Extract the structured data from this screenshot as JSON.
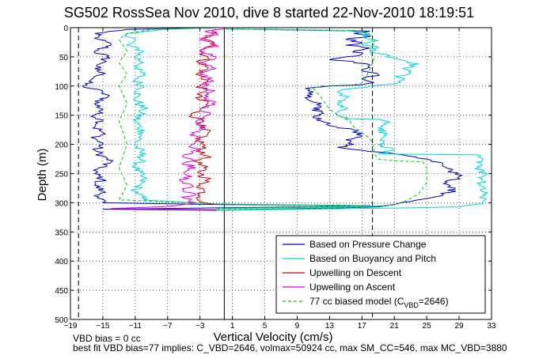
{
  "chart_data": {
    "type": "line",
    "title": "SG502 RossSea Nov 2010, dive 8 started 22-Nov-2010 18:19:51",
    "xlabel": "Vertical Velocity (cm/s)",
    "ylabel": "Depth (m)",
    "xlim": [
      -19,
      33
    ],
    "ylim": [
      0,
      500
    ],
    "y_reversed": true,
    "grid": true,
    "legend_position": "bottom-right",
    "xticks": [
      -19,
      -15,
      -11,
      -7,
      -3,
      1,
      5,
      9,
      13,
      17,
      21,
      25,
      29,
      33
    ],
    "yticks": [
      0,
      50,
      100,
      150,
      200,
      250,
      300,
      350,
      400,
      450,
      500
    ],
    "vertical_lines": [
      {
        "x": -18.0,
        "style": "dashed",
        "color": "#000000"
      },
      {
        "x": 18.3,
        "style": "dashed",
        "color": "#000000"
      },
      {
        "x": 0.0,
        "style": "solid",
        "color": "#000000"
      }
    ],
    "series": [
      {
        "name": "Based on Pressure Change",
        "color": "#0000cc",
        "style": "solid",
        "points": [
          [
            -1,
            0
          ],
          [
            -12,
            3
          ],
          [
            -16,
            10
          ],
          [
            -15.5,
            20
          ],
          [
            -14,
            30
          ],
          [
            -16,
            40
          ],
          [
            -14.5,
            50
          ],
          [
            -15,
            60
          ],
          [
            -16,
            70
          ],
          [
            -15,
            80
          ],
          [
            -16.5,
            90
          ],
          [
            -17.5,
            100
          ],
          [
            -15,
            110
          ],
          [
            -14.5,
            120
          ],
          [
            -16,
            130
          ],
          [
            -15,
            140
          ],
          [
            -16,
            150
          ],
          [
            -15,
            160
          ],
          [
            -16,
            170
          ],
          [
            -15,
            180
          ],
          [
            -16,
            190
          ],
          [
            -15,
            200
          ],
          [
            -16,
            210
          ],
          [
            -15,
            220
          ],
          [
            -14,
            230
          ],
          [
            -15.5,
            240
          ],
          [
            -16,
            250
          ],
          [
            -15,
            260
          ],
          [
            -16,
            270
          ],
          [
            -15,
            280
          ],
          [
            -15.5,
            290
          ],
          [
            -15,
            300
          ],
          [
            -1,
            303
          ],
          [
            18,
            305
          ],
          [
            5,
            308
          ],
          [
            -15,
            311
          ],
          [
            -1,
            313
          ]
        ]
      },
      {
        "name": "Based on Buoyancy and Pitch",
        "color": "#00d8d8",
        "style": "solid",
        "points": [
          [
            -1,
            0
          ],
          [
            -8,
            3
          ],
          [
            -12,
            10
          ],
          [
            -11,
            20
          ],
          [
            -12,
            30
          ],
          [
            -10,
            40
          ],
          [
            -11,
            50
          ],
          [
            -10,
            60
          ],
          [
            -11,
            70
          ],
          [
            -10,
            80
          ],
          [
            -11,
            90
          ],
          [
            -10,
            100
          ],
          [
            -11,
            120
          ],
          [
            -10,
            140
          ],
          [
            -11,
            160
          ],
          [
            -10,
            180
          ],
          [
            -11,
            200
          ],
          [
            -10,
            220
          ],
          [
            -11,
            240
          ],
          [
            -10,
            260
          ],
          [
            -11,
            280
          ],
          [
            -10,
            295
          ],
          [
            -1,
            302
          ],
          [
            20,
            306
          ],
          [
            -1,
            310
          ]
        ]
      },
      {
        "name": "Upwelling on Descent",
        "color": "#cc0000",
        "style": "solid",
        "points": [
          [
            -1,
            3
          ],
          [
            -1.5,
            10
          ],
          [
            -2.5,
            20
          ],
          [
            -1,
            30
          ],
          [
            -3,
            40
          ],
          [
            -2,
            50
          ],
          [
            -3,
            60
          ],
          [
            -2,
            70
          ],
          [
            -3.5,
            80
          ],
          [
            -2,
            90
          ],
          [
            -3,
            100
          ],
          [
            -2.5,
            110
          ],
          [
            -3.5,
            120
          ],
          [
            -2,
            130
          ],
          [
            -3,
            140
          ],
          [
            -4,
            150
          ],
          [
            -2.5,
            160
          ],
          [
            -3,
            170
          ],
          [
            -2,
            180
          ],
          [
            -3.5,
            190
          ],
          [
            -2.5,
            200
          ],
          [
            -3,
            210
          ],
          [
            -2,
            220
          ],
          [
            -3.5,
            230
          ],
          [
            -2.5,
            240
          ],
          [
            -3,
            250
          ],
          [
            -2,
            260
          ],
          [
            -3,
            270
          ],
          [
            -2.5,
            280
          ],
          [
            -3,
            290
          ],
          [
            -2.5,
            300
          ],
          [
            -1,
            303
          ]
        ]
      },
      {
        "name": "Upwelling on Ascent",
        "color": "#e000e0",
        "style": "solid",
        "points": [
          [
            -1,
            312
          ],
          [
            -14,
            310
          ],
          [
            -8,
            307
          ],
          [
            -5,
            303
          ],
          [
            -3.5,
            300
          ],
          [
            -5,
            292
          ],
          [
            -3.5,
            285
          ],
          [
            -5,
            278
          ],
          [
            -4,
            270
          ],
          [
            -5.5,
            262
          ],
          [
            -4,
            255
          ],
          [
            -5,
            248
          ],
          [
            -3.5,
            240
          ],
          [
            -5,
            232
          ],
          [
            -4,
            225
          ],
          [
            -5,
            218
          ],
          [
            -3.5,
            210
          ],
          [
            -4,
            200
          ],
          [
            -3,
            190
          ],
          [
            -4,
            180
          ],
          [
            -2.5,
            170
          ],
          [
            -3.5,
            160
          ],
          [
            -2,
            150
          ],
          [
            -3,
            140
          ],
          [
            -1.5,
            130
          ],
          [
            -2.5,
            120
          ],
          [
            -1.5,
            110
          ],
          [
            -2.5,
            100
          ],
          [
            -1.5,
            90
          ],
          [
            -3,
            80
          ],
          [
            -1,
            70
          ],
          [
            -3,
            60
          ],
          [
            -1,
            50
          ],
          [
            -3,
            40
          ],
          [
            -1,
            30
          ],
          [
            -3,
            20
          ],
          [
            -1,
            10
          ],
          [
            -2,
            5
          ],
          [
            0,
            2
          ]
        ]
      },
      {
        "name": "77 cc biased model (C_VBD=2646)",
        "color": "#00cc00",
        "style": "dashed",
        "points": [
          [
            -1,
            0
          ],
          [
            -9,
            3
          ],
          [
            -12,
            10
          ],
          [
            -13,
            20
          ],
          [
            -12,
            40
          ],
          [
            -13,
            60
          ],
          [
            -12,
            80
          ],
          [
            -13,
            100
          ],
          [
            -12,
            130
          ],
          [
            -13,
            160
          ],
          [
            -12,
            200
          ],
          [
            -13,
            240
          ],
          [
            -12,
            270
          ],
          [
            -13,
            295
          ],
          [
            -1,
            302
          ],
          [
            17,
            305
          ],
          [
            -1,
            310
          ]
        ]
      },
      {
        "name": "Based on Pressure Change (ascent)",
        "color": "#0000cc",
        "style": "solid",
        "legend": false,
        "points": [
          [
            -1,
            313
          ],
          [
            6,
            311
          ],
          [
            14,
            309
          ],
          [
            19,
            307
          ],
          [
            21,
            303
          ],
          [
            23,
            298
          ],
          [
            26,
            290
          ],
          [
            28,
            282
          ],
          [
            28.5,
            275
          ],
          [
            27.5,
            265
          ],
          [
            29,
            255
          ],
          [
            28,
            245
          ],
          [
            27,
            235
          ],
          [
            25,
            225
          ],
          [
            22,
            218
          ],
          [
            20,
            214
          ],
          [
            17,
            210
          ],
          [
            14,
            205
          ],
          [
            16,
            200
          ],
          [
            15,
            192
          ],
          [
            17,
            185
          ],
          [
            16,
            175
          ],
          [
            13,
            168
          ],
          [
            12,
            160
          ],
          [
            11,
            152
          ],
          [
            12,
            145
          ],
          [
            11,
            138
          ],
          [
            12,
            130
          ],
          [
            10,
            120
          ],
          [
            11,
            110
          ],
          [
            10,
            104
          ],
          [
            13,
            100
          ],
          [
            17,
            98
          ],
          [
            18.5,
            94
          ],
          [
            17,
            88
          ],
          [
            19,
            80
          ],
          [
            17,
            72
          ],
          [
            18,
            64
          ],
          [
            16,
            58
          ],
          [
            13,
            55
          ],
          [
            15,
            50
          ],
          [
            17,
            45
          ],
          [
            16,
            40
          ],
          [
            18,
            35
          ],
          [
            15,
            30
          ],
          [
            17,
            25
          ],
          [
            15,
            20
          ],
          [
            18,
            15
          ],
          [
            16,
            10
          ],
          [
            18,
            6
          ],
          [
            0,
            2
          ]
        ]
      },
      {
        "name": "Based on Buoyancy and Pitch (ascent)",
        "color": "#00d8d8",
        "style": "solid",
        "legend": false,
        "points": [
          [
            -1,
            313
          ],
          [
            10,
            311
          ],
          [
            22,
            309
          ],
          [
            29,
            307
          ],
          [
            31,
            303
          ],
          [
            32,
            297
          ],
          [
            32,
            285
          ],
          [
            31.5,
            270
          ],
          [
            32,
            255
          ],
          [
            31.5,
            240
          ],
          [
            32,
            225
          ],
          [
            31.5,
            218
          ],
          [
            24,
            217
          ],
          [
            19,
            216
          ],
          [
            21,
            210
          ],
          [
            19,
            200
          ],
          [
            20,
            185
          ],
          [
            19,
            172
          ],
          [
            20,
            160
          ],
          [
            19,
            157
          ],
          [
            15,
            156
          ],
          [
            14,
            150
          ],
          [
            15,
            140
          ],
          [
            14,
            130
          ],
          [
            15,
            120
          ],
          [
            14,
            110
          ],
          [
            16,
            104
          ],
          [
            18,
            100
          ],
          [
            21,
            96
          ],
          [
            22,
            90
          ],
          [
            21,
            84
          ],
          [
            23,
            78
          ],
          [
            22,
            70
          ],
          [
            24,
            62
          ],
          [
            22,
            56
          ],
          [
            21,
            52
          ],
          [
            20,
            46
          ],
          [
            18,
            40
          ],
          [
            19,
            34
          ],
          [
            17,
            28
          ],
          [
            19,
            22
          ],
          [
            17,
            16
          ],
          [
            18,
            10
          ],
          [
            15,
            5
          ],
          [
            0,
            2
          ]
        ]
      },
      {
        "name": "77 cc biased model (ascent)",
        "color": "#00cc00",
        "style": "dashed",
        "legend": false,
        "points": [
          [
            -1,
            312
          ],
          [
            8,
            310
          ],
          [
            16,
            308
          ],
          [
            20,
            305
          ],
          [
            22,
            300
          ],
          [
            24,
            285
          ],
          [
            25,
            265
          ],
          [
            25,
            250
          ],
          [
            25,
            240
          ],
          [
            24.5,
            230
          ],
          [
            21,
            228
          ],
          [
            19,
            225
          ],
          [
            18.5,
            215
          ],
          [
            18.5,
            205
          ],
          [
            18,
            190
          ],
          [
            17,
            180
          ],
          [
            16,
            170
          ],
          [
            15.5,
            160
          ],
          [
            14,
            150
          ],
          [
            13,
            140
          ],
          [
            12,
            120
          ],
          [
            11,
            104
          ],
          [
            12,
            100
          ],
          [
            16,
            98
          ],
          [
            17,
            95
          ],
          [
            17.5,
            85
          ],
          [
            18,
            70
          ],
          [
            18.5,
            55
          ],
          [
            18,
            40
          ],
          [
            18.5,
            25
          ],
          [
            18,
            12
          ],
          [
            17,
            5
          ],
          [
            0,
            2
          ]
        ]
      }
    ]
  },
  "legend": {
    "entries": [
      {
        "label": "Based on Pressure Change",
        "color": "#0000cc",
        "style": "solid"
      },
      {
        "label": "Based on Buoyancy and Pitch",
        "color": "#00d8d8",
        "style": "solid"
      },
      {
        "label": "Upwelling on Descent",
        "color": "#cc0000",
        "style": "solid"
      },
      {
        "label": "Upwelling on Ascent",
        "color": "#e000e0",
        "style": "solid"
      }
    ],
    "model_entry": {
      "prefix": "77 cc biased model (C",
      "sub": "VBD",
      "suffix": "=2646)",
      "color": "#00cc00",
      "style": "dashed"
    }
  },
  "footer": {
    "line1": "VBD bias = 0 cc",
    "line2": "best fit VBD bias=77 implies: C_VBD=2646, volmax=50924 cc, max SM_CC=546, max MC_VBD=3880"
  }
}
